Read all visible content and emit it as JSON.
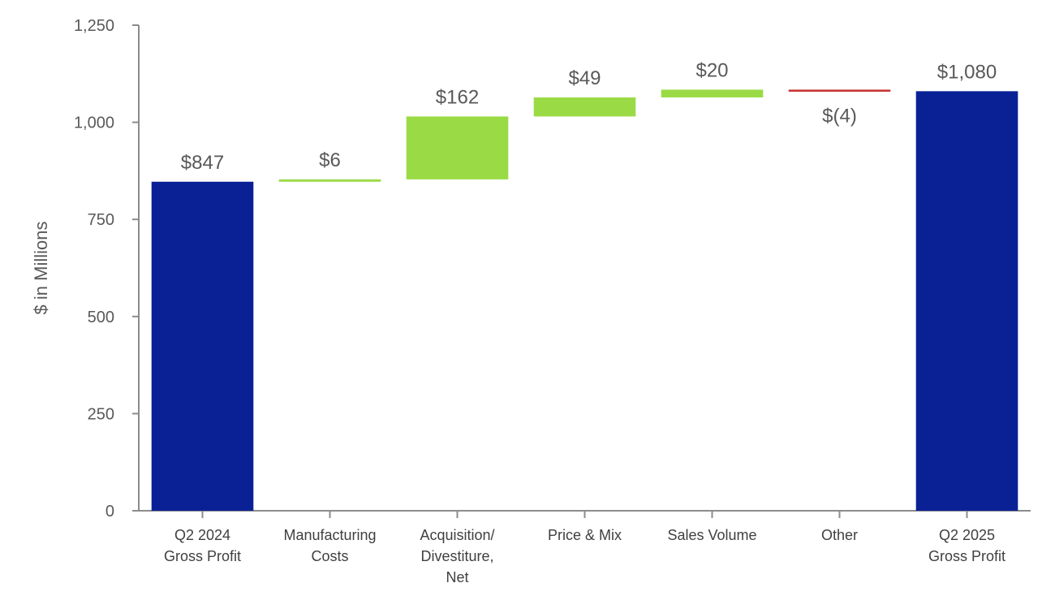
{
  "chart_data": {
    "type": "waterfall",
    "title": "",
    "xlabel": "",
    "ylabel": "$ in Millions",
    "ylim": [
      0,
      1250
    ],
    "yticks": [
      0,
      250,
      500,
      750,
      1000,
      1250
    ],
    "ytick_labels": [
      "0",
      "250",
      "500",
      "750",
      "1,000",
      "1,250"
    ],
    "grid": false,
    "categories": [
      [
        "Q2 2024",
        "Gross Profit"
      ],
      [
        "Manufacturing",
        "Costs"
      ],
      [
        "Acquisition/",
        "Divestiture,",
        "Net"
      ],
      [
        "Price & Mix"
      ],
      [
        "Sales Volume"
      ],
      [
        "Other"
      ],
      [
        "Q2 2025",
        "Gross Profit"
      ]
    ],
    "bars": [
      {
        "kind": "total",
        "value": 847,
        "label": "$847"
      },
      {
        "kind": "change",
        "value": 6,
        "label": "$6"
      },
      {
        "kind": "change",
        "value": 162,
        "label": "$162"
      },
      {
        "kind": "change",
        "value": 49,
        "label": "$49"
      },
      {
        "kind": "change",
        "value": 20,
        "label": "$20"
      },
      {
        "kind": "change",
        "value": -4,
        "label": "$(4)"
      },
      {
        "kind": "total",
        "value": 1080,
        "label": "$1,080"
      }
    ],
    "colors": {
      "total": "#0A2196",
      "increase": "#9ADB45",
      "decrease": "#C8302E",
      "axis": "#8C8C8C"
    }
  }
}
